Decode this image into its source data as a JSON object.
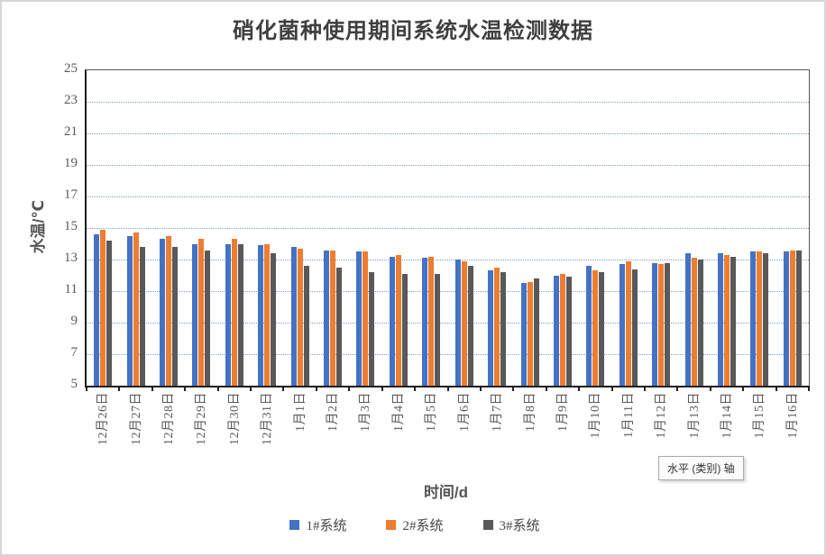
{
  "chart_data": {
    "type": "bar",
    "title": "硝化菌种使用期间系统水温检测数据",
    "xlabel": "时间/d",
    "ylabel": "水温/℃",
    "ylim": [
      5,
      25
    ],
    "ytick_step": 2,
    "yticks": [
      25,
      23,
      21,
      19,
      17,
      15,
      13,
      11,
      9,
      7,
      5
    ],
    "grid": "dotted-horizontal",
    "legend_position": "bottom",
    "categories": [
      "12月26日",
      "12月27日",
      "12月28日",
      "12月29日",
      "12月30日",
      "12月31日",
      "1月1日",
      "1月2日",
      "1月3日",
      "1月4日",
      "1月5日",
      "1月6日",
      "1月7日",
      "1月8日",
      "1月9日",
      "1月10日",
      "1月11日",
      "1月12日",
      "1月13日",
      "1月14日",
      "1月15日",
      "1月16日"
    ],
    "series": [
      {
        "name": "1#系统",
        "color": "#4472C4",
        "values": [
          14.6,
          14.5,
          14.3,
          14.0,
          14.0,
          13.9,
          13.8,
          13.6,
          13.5,
          13.2,
          13.1,
          13.0,
          12.3,
          11.5,
          12.0,
          12.6,
          12.7,
          12.8,
          13.4,
          13.4,
          13.5,
          13.5
        ]
      },
      {
        "name": "2#系统",
        "color": "#ED7D31",
        "values": [
          14.9,
          14.7,
          14.5,
          14.3,
          14.3,
          14.0,
          13.7,
          13.6,
          13.5,
          13.3,
          13.2,
          12.9,
          12.5,
          11.6,
          12.1,
          12.3,
          12.9,
          12.7,
          13.1,
          13.3,
          13.5,
          13.6
        ]
      },
      {
        "name": "3#系统",
        "color": "#595959",
        "values": [
          14.2,
          13.8,
          13.8,
          13.6,
          14.0,
          13.4,
          12.6,
          12.5,
          12.2,
          12.1,
          12.1,
          12.6,
          12.2,
          11.8,
          11.9,
          12.2,
          12.4,
          12.8,
          13.0,
          13.2,
          13.4,
          13.6
        ]
      }
    ]
  },
  "overlay": {
    "axis_tooltip": "水平 (类别) 轴"
  },
  "style": {
    "gridline_color": "#7f9cc9",
    "axis_color": "#1f1f1f",
    "label_color": "#595959",
    "title_color": "#3f3f3f"
  }
}
